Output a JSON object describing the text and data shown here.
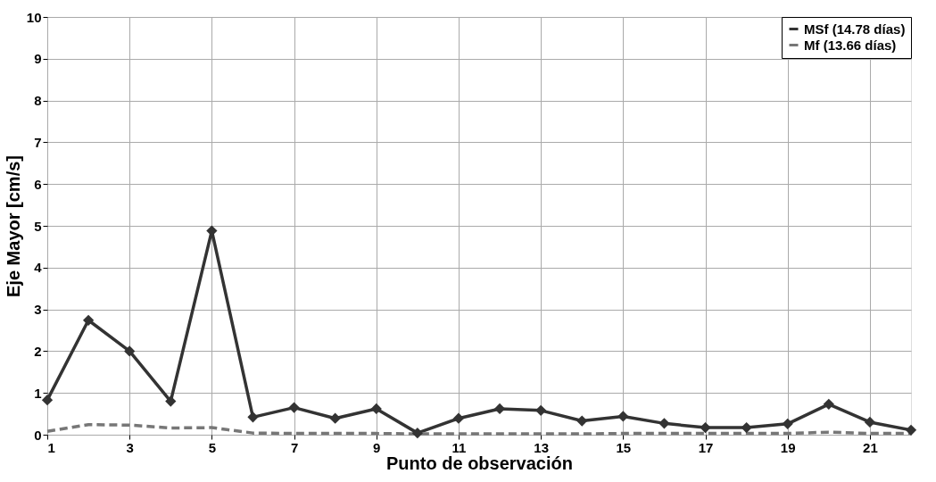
{
  "chart_data": {
    "type": "line",
    "xlabel": "Punto de observación",
    "ylabel": "Eje Mayor [cm/s]",
    "x": [
      1,
      2,
      3,
      4,
      5,
      6,
      7,
      8,
      9,
      10,
      11,
      12,
      13,
      14,
      15,
      16,
      17,
      18,
      19,
      20,
      21,
      22
    ],
    "xlim": [
      1,
      22
    ],
    "xticks": [
      1,
      3,
      5,
      7,
      9,
      11,
      13,
      15,
      17,
      19,
      21
    ],
    "ylim": [
      0,
      10
    ],
    "yticks": [
      0,
      1,
      2,
      3,
      4,
      5,
      6,
      7,
      8,
      9,
      10
    ],
    "series": [
      {
        "name": "MSf (14.78 días)",
        "color": "#333333",
        "marker": "diamond",
        "line_style": "solid",
        "values": [
          0.83,
          2.74,
          2.0,
          0.8,
          4.88,
          0.42,
          0.65,
          0.39,
          0.62,
          0.04,
          0.39,
          0.62,
          0.58,
          0.33,
          0.44,
          0.27,
          0.17,
          0.17,
          0.26,
          0.73,
          0.3,
          0.11
        ]
      },
      {
        "name": "Mf (13.66 días)",
        "color": "#777777",
        "marker": "none",
        "line_style": "dashed",
        "values": [
          0.08,
          0.24,
          0.23,
          0.16,
          0.17,
          0.04,
          0.03,
          0.03,
          0.03,
          0.02,
          0.02,
          0.02,
          0.02,
          0.02,
          0.03,
          0.03,
          0.03,
          0.03,
          0.03,
          0.06,
          0.03,
          0.03
        ]
      }
    ],
    "grid": true,
    "legend": "top right"
  }
}
